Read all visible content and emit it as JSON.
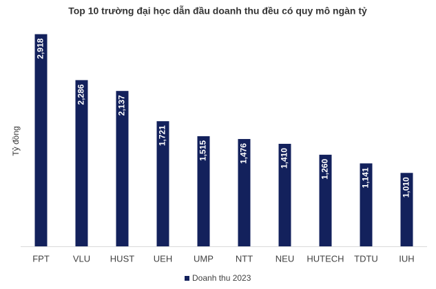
{
  "chart_data": {
    "type": "bar",
    "title": "Top 10 trường đại học dẫn đầu doanh thu đều có quy mô ngàn tỷ",
    "ylabel": "Tỷ đồng",
    "categories": [
      "FPT",
      "VLU",
      "HUST",
      "UEH",
      "UMP",
      "NTT",
      "NEU",
      "HUTECH",
      "TDTU",
      "IUH"
    ],
    "series": [
      {
        "name": "Doanh thu 2023",
        "color": "#13215c",
        "values": [
          2918,
          2286,
          2137,
          1721,
          1515,
          1476,
          1410,
          1260,
          1141,
          1010
        ],
        "value_labels": [
          "2,918",
          "2,286",
          "2,137",
          "1,721",
          "1,515",
          "1,476",
          "1,410",
          "1,260",
          "1,141",
          "1,010"
        ]
      }
    ],
    "ylim": [
      0,
      3000
    ],
    "legend": "bottom"
  }
}
